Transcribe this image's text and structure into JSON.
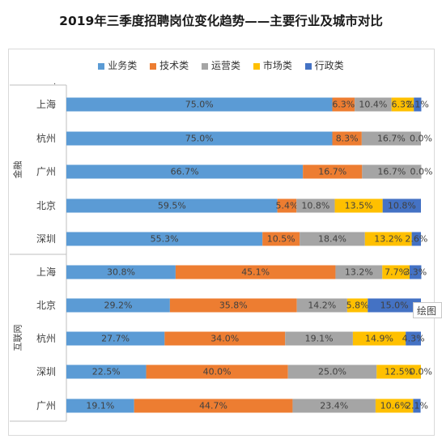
{
  "title": "2019年三季度招聘岗位变化趋势——主要行业及城市对比",
  "tooltip": "绘图",
  "dot": ".",
  "colors": {
    "业务类": "#5b9bd5",
    "技术类": "#ed7d31",
    "运营类": "#a5a5a5",
    "市场类": "#ffc000",
    "行政类": "#4472c4"
  },
  "chart_data": {
    "type": "bar",
    "stacked": true,
    "orientation": "horizontal",
    "legend_position": "top",
    "legend": [
      "业务类",
      "技术类",
      "运营类",
      "市场类",
      "行政类"
    ],
    "groups": [
      {
        "name": "金融",
        "rows": [
          {
            "city": "上海",
            "values": [
              75.0,
              6.3,
              10.4,
              6.3,
              2.1
            ],
            "labels": [
              "75.0%",
              "6.3%",
              "10.4%",
              "6.3%",
              "2.1%"
            ]
          },
          {
            "city": "杭州",
            "values": [
              75.0,
              8.3,
              16.7,
              0.0,
              0.0
            ],
            "labels": [
              "75.0%",
              "8.3%",
              "16.7%",
              "0.0%",
              ""
            ]
          },
          {
            "city": "广州",
            "values": [
              66.7,
              16.7,
              16.7,
              0.0,
              0.0
            ],
            "labels": [
              "66.7%",
              "16.7%",
              "16.7%",
              "0.0%",
              ""
            ]
          },
          {
            "city": "北京",
            "values": [
              59.5,
              5.4,
              10.8,
              13.5,
              10.8
            ],
            "labels": [
              "59.5%",
              "5.4%",
              "10.8%",
              "13.5%",
              "10.8%"
            ]
          },
          {
            "city": "深圳",
            "values": [
              55.3,
              10.5,
              18.4,
              13.2,
              2.6
            ],
            "labels": [
              "55.3%",
              "10.5%",
              "18.4%",
              "13.2%",
              "2.6%"
            ]
          }
        ]
      },
      {
        "name": "互联网",
        "rows": [
          {
            "city": "上海",
            "values": [
              30.8,
              45.1,
              13.2,
              7.7,
              3.3
            ],
            "labels": [
              "30.8%",
              "45.1%",
              "13.2%",
              "7.7%",
              "3.3%"
            ]
          },
          {
            "city": "北京",
            "values": [
              29.2,
              35.8,
              14.2,
              5.8,
              15.0
            ],
            "labels": [
              "29.2%",
              "35.8%",
              "14.2%",
              "5.8%",
              "15.0%"
            ]
          },
          {
            "city": "杭州",
            "values": [
              27.7,
              34.0,
              19.1,
              14.9,
              4.3
            ],
            "labels": [
              "27.7%",
              "34.0%",
              "19.1%",
              "14.9%",
              "4.3%"
            ]
          },
          {
            "city": "深圳",
            "values": [
              22.5,
              40.0,
              25.0,
              12.5,
              0.0
            ],
            "labels": [
              "22.5%",
              "40.0%",
              "25.0%",
              "12.5%",
              "0.0%"
            ]
          },
          {
            "city": "广州",
            "values": [
              19.1,
              44.7,
              23.4,
              10.6,
              2.1
            ],
            "labels": [
              "19.1%",
              "44.7%",
              "23.4%",
              "10.6%",
              "2.1%"
            ]
          }
        ]
      }
    ]
  }
}
